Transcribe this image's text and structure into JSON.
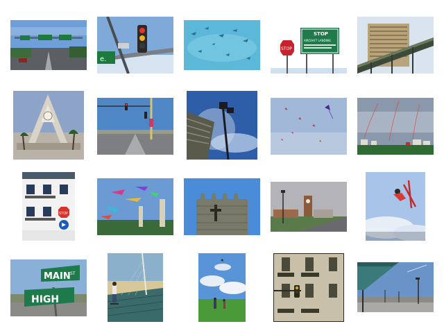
{
  "sign_text": {
    "stop": "STOP",
    "stop_small": "STOP",
    "aircraft_sign": "STOP",
    "aircraft_sub": "AIRCRAFT LANDING",
    "street_main": "MAIN",
    "street_main_suffix": "ST",
    "street_high": "HIGH",
    "road_sign_letter": "e."
  },
  "thumbnails": [
    {
      "id": "highway-signs"
    },
    {
      "id": "traffic-light-camera"
    },
    {
      "id": "kites-underwater-like"
    },
    {
      "id": "stop-aircraft-sign"
    },
    {
      "id": "tower-building-bridge"
    },
    {
      "id": "concrete-clock-monument"
    },
    {
      "id": "intersection-traffic-lights"
    },
    {
      "id": "street-lamp-building-sky"
    },
    {
      "id": "kites-grey-sky"
    },
    {
      "id": "kites-field-houses"
    },
    {
      "id": "white-building-stop-sign"
    },
    {
      "id": "colorful-kites-towers"
    },
    {
      "id": "stone-church-tower"
    },
    {
      "id": "clock-tower-road"
    },
    {
      "id": "skier-jump"
    },
    {
      "id": "main-high-street-sign"
    },
    {
      "id": "skateboarder-bridge"
    },
    {
      "id": "people-green-field-kite"
    },
    {
      "id": "building-traffic-light"
    },
    {
      "id": "canopy-street-lamps"
    }
  ]
}
